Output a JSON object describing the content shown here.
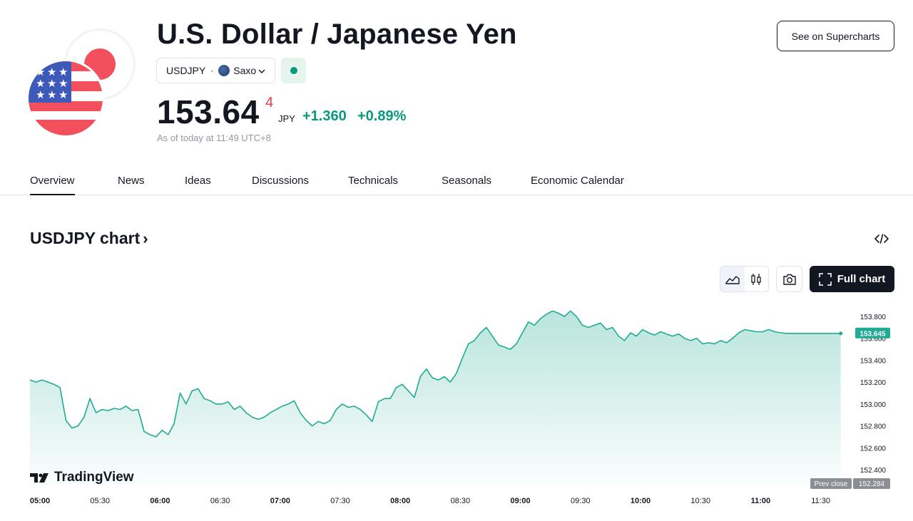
{
  "header": {
    "title": "U.S. Dollar / Japanese Yen",
    "symbol": "USDJPY",
    "separator": "·",
    "exchange": "Saxo",
    "market_status_color": "#089981"
  },
  "quote": {
    "price": "153.64",
    "price_superscript": "4",
    "currency": "JPY",
    "change": "+1.360",
    "change_percent": "+0.89%",
    "as_of": "As of today at 11:49 UTC+8",
    "positive_color": "#089981",
    "negative_color": "#f23645"
  },
  "buttons": {
    "supercharts": "See on Supercharts",
    "full_chart": "Full chart"
  },
  "tabs": [
    {
      "label": "Overview",
      "active": true
    },
    {
      "label": "News",
      "active": false
    },
    {
      "label": "Ideas",
      "active": false
    },
    {
      "label": "Discussions",
      "active": false
    },
    {
      "label": "Technicals",
      "active": false
    },
    {
      "label": "Seasonals",
      "active": false
    },
    {
      "label": "Economic Calendar",
      "active": false
    }
  ],
  "chart_section": {
    "heading": "USDJPY chart",
    "heading_arrow": "›",
    "branding": "TradingView"
  },
  "icons": [
    "flag-usd-jpy-icon",
    "chevron-down-icon",
    "embed-code-icon",
    "area-chart-icon",
    "candles-icon",
    "camera-icon",
    "fullscreen-icon",
    "tradingview-logo-icon"
  ],
  "chart_data": {
    "type": "area",
    "xlabel": "",
    "ylabel": "",
    "x_ticks": [
      "05:00",
      "05:30",
      "06:00",
      "06:30",
      "07:00",
      "07:30",
      "08:00",
      "08:30",
      "09:00",
      "09:30",
      "10:00",
      "10:30",
      "11:00",
      "11:30"
    ],
    "y_ticks": [
      "152.400",
      "152.600",
      "152.800",
      "153.000",
      "153.200",
      "153.400",
      "153.600",
      "153.800"
    ],
    "ylim": [
      152.28,
      153.9
    ],
    "x_range_minutes": [
      0,
      405
    ],
    "grid": false,
    "line_color": "#22ab94",
    "fill_color": "#22ab94",
    "last_value_label": "153.645",
    "prev_close_label": "Prev close",
    "prev_close_value": "152.284",
    "series": [
      {
        "x_minutes": [
          0,
          3,
          6,
          9,
          12,
          15,
          18,
          21,
          24,
          27,
          30,
          33,
          36,
          39,
          42,
          45,
          48,
          51,
          54,
          57,
          60,
          63,
          66,
          69,
          72,
          75,
          78,
          81,
          84,
          87,
          90,
          93,
          96,
          99,
          102,
          105,
          108,
          111,
          114,
          117,
          120,
          123,
          126,
          129,
          132,
          135,
          138,
          141,
          144,
          147,
          150,
          153,
          156,
          159,
          162,
          165,
          168,
          171,
          174,
          177,
          180,
          183,
          186,
          189,
          192,
          195,
          198,
          201,
          204,
          207,
          210,
          213,
          216,
          219,
          222,
          225,
          228,
          231,
          234,
          237,
          240,
          243,
          246,
          249,
          252,
          255,
          258,
          261,
          264,
          267,
          270,
          273,
          276,
          279,
          282,
          285,
          288,
          291,
          294,
          297,
          300,
          303,
          306,
          309,
          312,
          315,
          318,
          321,
          324,
          327,
          330,
          333,
          336,
          339,
          342,
          345,
          348,
          351,
          354,
          357,
          360,
          363,
          366,
          369,
          372,
          375,
          378,
          381,
          384,
          387,
          390,
          393,
          396,
          399,
          402,
          405
        ],
        "values": [
          153.22,
          153.2,
          153.22,
          153.2,
          153.18,
          153.15,
          152.85,
          152.78,
          152.8,
          152.88,
          153.05,
          152.92,
          152.95,
          152.94,
          152.96,
          152.95,
          152.98,
          152.94,
          152.95,
          152.75,
          152.72,
          152.7,
          152.76,
          152.72,
          152.82,
          153.1,
          153.0,
          153.12,
          153.14,
          153.05,
          153.03,
          153.0,
          153.0,
          153.02,
          152.95,
          152.98,
          152.92,
          152.88,
          152.86,
          152.88,
          152.92,
          152.95,
          152.98,
          153.0,
          153.03,
          152.92,
          152.85,
          152.8,
          152.84,
          152.82,
          152.85,
          152.95,
          153.0,
          152.97,
          152.98,
          152.95,
          152.9,
          152.84,
          153.02,
          153.05,
          153.05,
          153.15,
          153.18,
          153.12,
          153.06,
          153.25,
          153.32,
          153.24,
          153.22,
          153.25,
          153.2,
          153.28,
          153.42,
          153.55,
          153.58,
          153.65,
          153.7,
          153.62,
          153.54,
          153.52,
          153.5,
          153.55,
          153.65,
          153.75,
          153.72,
          153.78,
          153.82,
          153.85,
          153.83,
          153.8,
          153.85,
          153.8,
          153.72,
          153.7,
          153.72,
          153.74,
          153.68,
          153.7,
          153.62,
          153.58,
          153.65,
          153.62,
          153.68,
          153.65,
          153.63,
          153.66,
          153.64,
          153.62,
          153.64,
          153.6,
          153.58,
          153.6,
          153.55,
          153.56,
          153.55,
          153.58,
          153.56,
          153.6,
          153.65,
          153.68,
          153.67,
          153.66,
          153.66,
          153.68,
          153.66,
          153.65,
          153.645,
          153.645,
          153.645,
          153.645,
          153.645,
          153.645,
          153.645,
          153.645,
          153.645,
          153.645
        ]
      }
    ]
  }
}
